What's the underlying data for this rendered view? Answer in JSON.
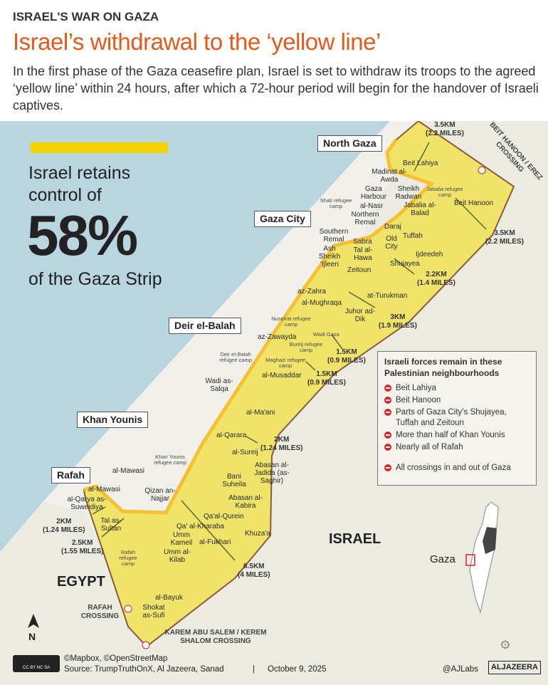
{
  "header": {
    "kicker": "ISRAEL'S WAR ON GAZA",
    "title": "Israel’s withdrawal to the ‘yellow line’",
    "dek": "In the first phase of the Gaza ceasefire plan, Israel is set to withdraw its troops to the agreed ‘yellow line’ within 24 hours, after which a 72-hour period will begin for the handover of Israeli captives."
  },
  "callout": {
    "line1": "Israel retains",
    "line2": "control of",
    "percent": "58%",
    "line3": "of the Gaza Strip",
    "value_percent": 58
  },
  "colors": {
    "title": "#e35a1a",
    "yellow_zone": "#f0e36a",
    "yellow_line": "#f5c132",
    "sea": "#b9d5df",
    "land": "#ecebe2",
    "border": "#8a5a3a",
    "no_icon": "#d9242a"
  },
  "regions": [
    "North Gaza",
    "Gaza City",
    "Deir el-Balah",
    "Khan Younis",
    "Rafah"
  ],
  "countries": [
    "ISRAEL",
    "EGYPT"
  ],
  "crossings": [
    "BEIT HANOON / EREZ CROSSING",
    "RAFAH CROSSING",
    "KAREM ABU SALEM / KEREM SHALOM CROSSING"
  ],
  "distances": [
    "3.5KM (2.2 MILES)",
    "3.5KM (2.2 MILES)",
    "2.2KM (1.4 MILES)",
    "3KM (1.9 MILES)",
    "1.5KM (0.9 MILES)",
    "1.5KM (0.9 MILES)",
    "2KM (1.24 MILES)",
    "2KM (1.24 MILES)",
    "2.5KM (1.55 MILES)",
    "6.5KM (4 MILES)"
  ],
  "places": [
    "Beit Lahiya",
    "Madinat al-Awda",
    "Gaza Harbour",
    "Shati refugee camp",
    "Sheikh Radwan",
    "Jabalia refugee camp",
    "al-Nasr",
    "Jabalia al-Balad",
    "Northern Remal",
    "Southern Remal",
    "Daraj",
    "Ash Sheikh 'Ijleen",
    "Sabra",
    "Tal al-Hawa",
    "Old City",
    "Tuffah",
    "Ijdeedeh",
    "Shujayea",
    "Zeitoun",
    "Beit Hanoon",
    "az-Zahra",
    "at-Turukman",
    "al-Mughraqa",
    "Juhor ad-Dik",
    "Nuseirat refugee camp",
    "az-Zawayda",
    "Wadi Gaza",
    "Bureij refugee camp",
    "Deir el-Balah refugee camp",
    "Maghazi refugee camp",
    "al-Musaddar",
    "Wadi as-Salqa",
    "al-Ma'ani",
    "al-Qarara",
    "al-Sureij",
    "Khan Younis refugee camp",
    "al-Mawasi",
    "Bani Suheila",
    "Abasan al-Jadida (as-Saghir)",
    "al-Mawasi",
    "Qizan an-Najjar",
    "Abasan al-Kabira",
    "al-Qarya as-Suweidiya",
    "Qa'al-Qurein",
    "Qa' al-Kharaba",
    "Tal as-Sultan",
    "Umm Kameil",
    "al-Fukhari",
    "Khuza'a",
    "Rafah refugee camp",
    "Umm al-Kilab",
    "al-Bayuk",
    "Shokat as-Sufi"
  ],
  "legend": {
    "title": "Israeli forces remain in these Palestinian neighbourhoods",
    "items": [
      "Beit Lahiya",
      "Beit Hanoon",
      "Parts of Gaza City’s Shujayea, Tuffah and Zeitoun",
      "More than half of Khan Younis",
      "Nearly all of Rafah",
      "All crossings in and out of Gaza"
    ]
  },
  "inset": {
    "label": "Gaza"
  },
  "compass": "N",
  "footer": {
    "license": "CC BY NC SA",
    "credits": "©Mapbox, ©OpenStreetMap",
    "source": "Source: TrumpTruthOnX, Al Jazeera, Sanad",
    "separator": "|",
    "date": "October 9, 2025",
    "handle": "@AJLabs",
    "logo": "ALJAZEERA"
  }
}
